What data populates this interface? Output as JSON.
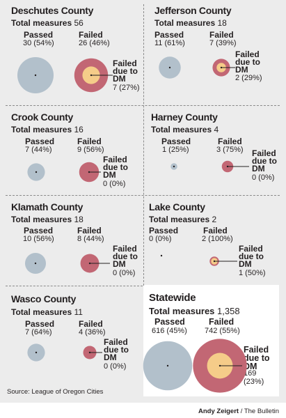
{
  "colors": {
    "passed": "#b2c0cb",
    "failed": "#c26774",
    "dm": "#f5cc89",
    "background": "#ececec",
    "statewide_panel": "#ffffff",
    "text": "#231f20"
  },
  "labels": {
    "total": "Total measures",
    "passed": "Passed",
    "failed": "Failed",
    "dm_line1": "Failed",
    "dm_line2": "due to",
    "dm_line3": "DM"
  },
  "chart_data": [
    {
      "type": "proportional-circle",
      "title": "Deschutes County",
      "total": "56",
      "passed": {
        "count": 30,
        "label": "30 (54%)"
      },
      "failed": {
        "count": 26,
        "label": "26 (46%)"
      },
      "failed_dm": {
        "count": 7,
        "label": "7 (27%)"
      }
    },
    {
      "type": "proportional-circle",
      "title": "Jefferson County",
      "total": "18",
      "passed": {
        "count": 11,
        "label": "11 (61%)"
      },
      "failed": {
        "count": 7,
        "label": "7 (39%)"
      },
      "failed_dm": {
        "count": 2,
        "label": "2 (29%)"
      }
    },
    {
      "type": "proportional-circle",
      "title": "Crook County",
      "total": "16",
      "passed": {
        "count": 7,
        "label": "7 (44%)"
      },
      "failed": {
        "count": 9,
        "label": "9 (56%)"
      },
      "failed_dm": {
        "count": 0,
        "label": "0 (0%)"
      }
    },
    {
      "type": "proportional-circle",
      "title": "Harney County",
      "total": "4",
      "passed": {
        "count": 1,
        "label": "1 (25%)"
      },
      "failed": {
        "count": 3,
        "label": "3 (75%)"
      },
      "failed_dm": {
        "count": 0,
        "label": "0 (0%)"
      }
    },
    {
      "type": "proportional-circle",
      "title": "Klamath County",
      "total": "18",
      "passed": {
        "count": 10,
        "label": "10 (56%)"
      },
      "failed": {
        "count": 8,
        "label": "8 (44%)"
      },
      "failed_dm": {
        "count": 0,
        "label": "0 (0%)"
      }
    },
    {
      "type": "proportional-circle",
      "title": "Lake County",
      "total": "2",
      "passed": {
        "count": 0,
        "label": "0 (0%)"
      },
      "failed": {
        "count": 2,
        "label": "2 (100%)"
      },
      "failed_dm": {
        "count": 1,
        "label": "1 (50%)"
      }
    },
    {
      "type": "proportional-circle",
      "title": "Wasco County",
      "total": "11",
      "passed": {
        "count": 7,
        "label": "7 (64%)"
      },
      "failed": {
        "count": 4,
        "label": "4 (36%)"
      },
      "failed_dm": {
        "count": 0,
        "label": "0 (0%)"
      }
    },
    {
      "type": "proportional-circle",
      "title": "Statewide",
      "total": "1,358",
      "passed": {
        "count": 616,
        "label": "616 (45%)"
      },
      "failed": {
        "count": 742,
        "label": "742 (55%)"
      },
      "failed_dm": {
        "count": 169,
        "label_line1": "169",
        "label_line2": "(23%)"
      }
    }
  ],
  "source": "Source: League of Oregon Cities",
  "credit": {
    "author": "Andy Zeigert",
    "separator": " / ",
    "outlet": "The Bulletin"
  }
}
